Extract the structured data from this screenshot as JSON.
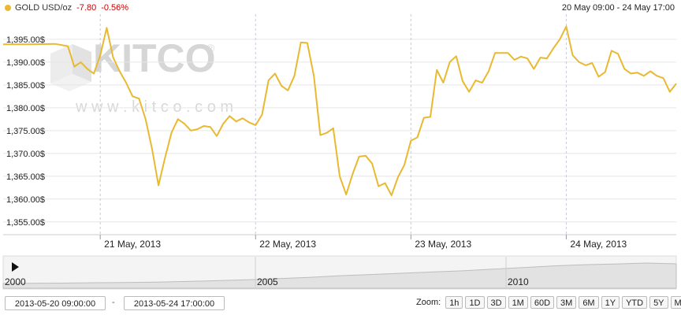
{
  "header": {
    "symbol": "GOLD USD/oz",
    "change": "-7.80",
    "change_pct": "-0.56%",
    "range_label": "20 May 09:00 - 24 May 17:00"
  },
  "watermark": {
    "brand": "KITCO",
    "registered": "®",
    "url": "w w w . k i t c o . c o m"
  },
  "colors": {
    "line": "#e8b931",
    "grid": "#e5e5e5",
    "down": "#cc0000"
  },
  "chart_data": {
    "type": "line",
    "title": "",
    "xlabel": "",
    "ylabel": "",
    "ylim": [
      1350,
      1400
    ],
    "yticks": [
      "1,355.00$",
      "1,360.00$",
      "1,365.00$",
      "1,370.00$",
      "1,375.00$",
      "1,380.00$",
      "1,385.00$",
      "1,390.00$",
      "1,395.00$"
    ],
    "yticks_values": [
      1355,
      1360,
      1365,
      1370,
      1375,
      1380,
      1385,
      1390,
      1395
    ],
    "x_start": "2013-05-20 09:00:00",
    "x_end": "2013-05-24 17:00:00",
    "xticks": [
      "21 May, 2013",
      "22 May, 2013",
      "23 May, 2013",
      "24 May, 2013"
    ],
    "series": [
      {
        "name": "",
        "points": [
          [
            "2013-05-20 09:00",
            1393.9
          ],
          [
            "2013-05-20 13:00",
            1393.9
          ],
          [
            "2013-05-20 17:00",
            1394.0
          ],
          [
            "2013-05-20 19:00",
            1393.5
          ],
          [
            "2013-05-20 20:00",
            1389.0
          ],
          [
            "2013-05-20 21:00",
            1390.0
          ],
          [
            "2013-05-20 22:00",
            1388.5
          ],
          [
            "2013-05-20 23:00",
            1387.5
          ],
          [
            "2013-05-21 00:00",
            1391.5
          ],
          [
            "2013-05-21 01:00",
            1397.5
          ],
          [
            "2013-05-21 02:00",
            1391.0
          ],
          [
            "2013-05-21 03:00",
            1388.0
          ],
          [
            "2013-05-21 04:00",
            1385.5
          ],
          [
            "2013-05-21 05:00",
            1382.5
          ],
          [
            "2013-05-21 06:00",
            1382.0
          ],
          [
            "2013-05-21 07:00",
            1377.5
          ],
          [
            "2013-05-21 08:00",
            1371.0
          ],
          [
            "2013-05-21 09:00",
            1363.0
          ],
          [
            "2013-05-21 10:00",
            1369.0
          ],
          [
            "2013-05-21 11:00",
            1374.5
          ],
          [
            "2013-05-21 12:00",
            1377.5
          ],
          [
            "2013-05-21 13:00",
            1376.5
          ],
          [
            "2013-05-21 14:00",
            1375.0
          ],
          [
            "2013-05-21 15:00",
            1375.3
          ],
          [
            "2013-05-21 16:00",
            1376.0
          ],
          [
            "2013-05-21 17:00",
            1375.8
          ],
          [
            "2013-05-21 18:00",
            1373.8
          ],
          [
            "2013-05-21 19:00",
            1376.5
          ],
          [
            "2013-05-21 20:00",
            1378.2
          ],
          [
            "2013-05-21 21:00",
            1377.0
          ],
          [
            "2013-05-21 22:00",
            1377.7
          ],
          [
            "2013-05-21 23:00",
            1376.8
          ],
          [
            "2013-05-22 00:00",
            1376.2
          ],
          [
            "2013-05-22 01:00",
            1378.5
          ],
          [
            "2013-05-22 02:00",
            1386.0
          ],
          [
            "2013-05-22 03:00",
            1387.5
          ],
          [
            "2013-05-22 04:00",
            1384.8
          ],
          [
            "2013-05-22 05:00",
            1383.8
          ],
          [
            "2013-05-22 06:00",
            1387.0
          ],
          [
            "2013-05-22 07:00",
            1394.3
          ],
          [
            "2013-05-22 08:00",
            1394.2
          ],
          [
            "2013-05-22 09:00",
            1387.0
          ],
          [
            "2013-05-22 10:00",
            1374.0
          ],
          [
            "2013-05-22 11:00",
            1374.5
          ],
          [
            "2013-05-22 12:00",
            1375.5
          ],
          [
            "2013-05-22 13:00",
            1365.0
          ],
          [
            "2013-05-22 14:00",
            1361.0
          ],
          [
            "2013-05-22 15:00",
            1365.5
          ],
          [
            "2013-05-22 16:00",
            1369.3
          ],
          [
            "2013-05-22 17:00",
            1369.5
          ],
          [
            "2013-05-22 18:00",
            1367.8
          ],
          [
            "2013-05-22 19:00",
            1362.8
          ],
          [
            "2013-05-22 20:00",
            1363.5
          ],
          [
            "2013-05-22 21:00",
            1360.8
          ],
          [
            "2013-05-22 22:00",
            1364.8
          ],
          [
            "2013-05-22 23:00",
            1367.5
          ],
          [
            "2013-05-23 00:00",
            1372.8
          ],
          [
            "2013-05-23 01:00",
            1373.5
          ],
          [
            "2013-05-23 02:00",
            1377.8
          ],
          [
            "2013-05-23 03:00",
            1378.0
          ],
          [
            "2013-05-23 04:00",
            1388.3
          ],
          [
            "2013-05-23 05:00",
            1385.5
          ],
          [
            "2013-05-23 06:00",
            1390.0
          ],
          [
            "2013-05-23 07:00",
            1391.3
          ],
          [
            "2013-05-23 08:00",
            1385.8
          ],
          [
            "2013-05-23 09:00",
            1383.5
          ],
          [
            "2013-05-23 10:00",
            1386.0
          ],
          [
            "2013-05-23 11:00",
            1385.5
          ],
          [
            "2013-05-23 12:00",
            1388.0
          ],
          [
            "2013-05-23 13:00",
            1392.0
          ],
          [
            "2013-05-23 14:00",
            1392.0
          ],
          [
            "2013-05-23 15:00",
            1392.0
          ],
          [
            "2013-05-23 16:00",
            1390.5
          ],
          [
            "2013-05-23 17:00",
            1391.2
          ],
          [
            "2013-05-23 18:00",
            1390.8
          ],
          [
            "2013-05-23 19:00",
            1388.5
          ],
          [
            "2013-05-23 20:00",
            1391.0
          ],
          [
            "2013-05-23 21:00",
            1390.8
          ],
          [
            "2013-05-23 22:00",
            1393.0
          ],
          [
            "2013-05-23 23:00",
            1395.0
          ],
          [
            "2013-05-24 00:00",
            1397.8
          ],
          [
            "2013-05-24 01:00",
            1391.5
          ],
          [
            "2013-05-24 02:00",
            1390.0
          ],
          [
            "2013-05-24 03:00",
            1389.3
          ],
          [
            "2013-05-24 04:00",
            1389.8
          ],
          [
            "2013-05-24 05:00",
            1386.8
          ],
          [
            "2013-05-24 06:00",
            1387.8
          ],
          [
            "2013-05-24 07:00",
            1392.5
          ],
          [
            "2013-05-24 08:00",
            1391.8
          ],
          [
            "2013-05-24 09:00",
            1388.5
          ],
          [
            "2013-05-24 10:00",
            1387.5
          ],
          [
            "2013-05-24 11:00",
            1387.7
          ],
          [
            "2013-05-24 12:00",
            1387.0
          ],
          [
            "2013-05-24 13:00",
            1388.0
          ],
          [
            "2013-05-24 14:00",
            1387.0
          ],
          [
            "2013-05-24 15:00",
            1386.5
          ],
          [
            "2013-05-24 16:00",
            1383.5
          ],
          [
            "2013-05-24 17:00",
            1385.3
          ]
        ]
      }
    ],
    "grid": true,
    "legend": "none"
  },
  "navigator": {
    "labels": [
      "2000",
      "2005",
      "2010"
    ],
    "play_label": "play-icon",
    "history": [
      0.0,
      0.01,
      0.02,
      0.04,
      0.05,
      0.07,
      0.1,
      0.14,
      0.18,
      0.24,
      0.3,
      0.38,
      0.44,
      0.5,
      0.56,
      0.62,
      0.7,
      0.78,
      0.86,
      0.92,
      0.95,
      1.0,
      0.96
    ]
  },
  "range": {
    "from": "2013-05-20 09:00:00",
    "separator": "-",
    "to": "2013-05-24 17:00:00"
  },
  "zoom": {
    "label": "Zoom:",
    "buttons": [
      "1h",
      "1D",
      "3D",
      "1M",
      "60D",
      "3M",
      "6M",
      "1Y",
      "YTD",
      "5Y",
      "MAX"
    ]
  }
}
